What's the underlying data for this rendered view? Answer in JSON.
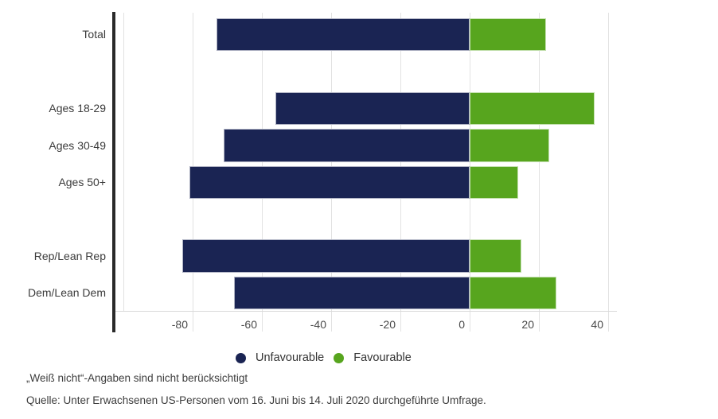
{
  "chart_data": {
    "type": "bar",
    "orientation": "horizontal-diverging",
    "title": "",
    "xlabel": "",
    "ylabel": "",
    "categories": [
      "Total",
      "Ages 18-29",
      "Ages 30-49",
      "Ages 50+",
      "Rep/Lean Rep",
      "Dem/Lean Dem"
    ],
    "series": [
      {
        "name": "Unfavourable",
        "color": "#1a2453",
        "values": [
          -73,
          -56,
          -71,
          -81,
          -83,
          -68
        ]
      },
      {
        "name": "Favourable",
        "color": "#57a51e",
        "values": [
          22,
          36,
          23,
          14,
          15,
          25
        ]
      }
    ],
    "x_tick_labels": [
      "-80",
      "-60",
      "-40",
      "-20",
      "0",
      "20",
      "40"
    ],
    "x_tick_values": [
      -80,
      -60,
      -40,
      -20,
      0,
      20,
      40
    ],
    "x_gridline_values": [
      -100,
      -80,
      -60,
      -40,
      -20,
      0,
      20,
      40
    ],
    "xlim": [
      -100,
      40
    ],
    "grid": "vertical",
    "legend_position": "bottom"
  },
  "legend": {
    "items": [
      {
        "label": "Unfavourable",
        "color": "#1a2453"
      },
      {
        "label": "Favourable",
        "color": "#57a51e"
      }
    ]
  },
  "footnote": "„Weiß nicht“-Angaben sind nicht berücksichtigt",
  "source": "Quelle: Unter Erwachsenen US-Personen vom 16. Juni bis 14. Juli 2020 durchgeführte Umfrage.",
  "colors": {
    "unfavourable": "#1a2453",
    "favourable": "#57a51e",
    "gridline": "#e2e2e2",
    "axis_line": "#2a2a2a",
    "text": "#3b3b3b"
  }
}
